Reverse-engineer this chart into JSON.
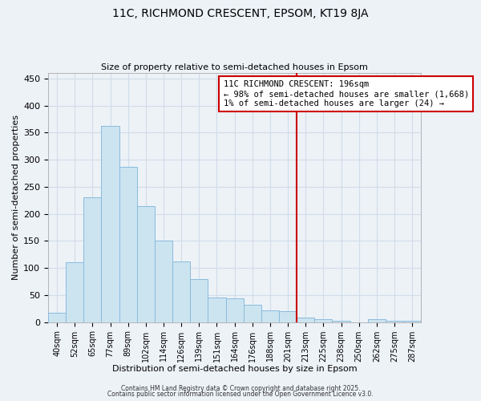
{
  "title": "11C, RICHMOND CRESCENT, EPSOM, KT19 8JA",
  "subtitle": "Size of property relative to semi-detached houses in Epsom",
  "xlabel": "Distribution of semi-detached houses by size in Epsom",
  "ylabel": "Number of semi-detached properties",
  "bin_labels": [
    "40sqm",
    "52sqm",
    "65sqm",
    "77sqm",
    "89sqm",
    "102sqm",
    "114sqm",
    "126sqm",
    "139sqm",
    "151sqm",
    "164sqm",
    "176sqm",
    "188sqm",
    "201sqm",
    "213sqm",
    "225sqm",
    "238sqm",
    "250sqm",
    "262sqm",
    "275sqm",
    "287sqm"
  ],
  "bar_heights": [
    17,
    110,
    230,
    363,
    287,
    215,
    150,
    112,
    80,
    45,
    44,
    32,
    21,
    20,
    9,
    5,
    2,
    0,
    5,
    2,
    2
  ],
  "bar_color": "#cce4f0",
  "bar_edge_color": "#88bbdd",
  "vline_x": 13.5,
  "vline_color": "#cc0000",
  "annotation_title": "11C RICHMOND CRESCENT: 196sqm",
  "annotation_line1": "← 98% of semi-detached houses are smaller (1,668)",
  "annotation_line2": "1% of semi-detached houses are larger (24) →",
  "ylim": [
    0,
    460
  ],
  "yticks": [
    0,
    50,
    100,
    150,
    200,
    250,
    300,
    350,
    400,
    450
  ],
  "grid_color": "#d0dde8",
  "bg_color": "#edf2f7",
  "footer1": "Contains HM Land Registry data © Crown copyright and database right 2025.",
  "footer2": "Contains public sector information licensed under the Open Government Licence v3.0."
}
